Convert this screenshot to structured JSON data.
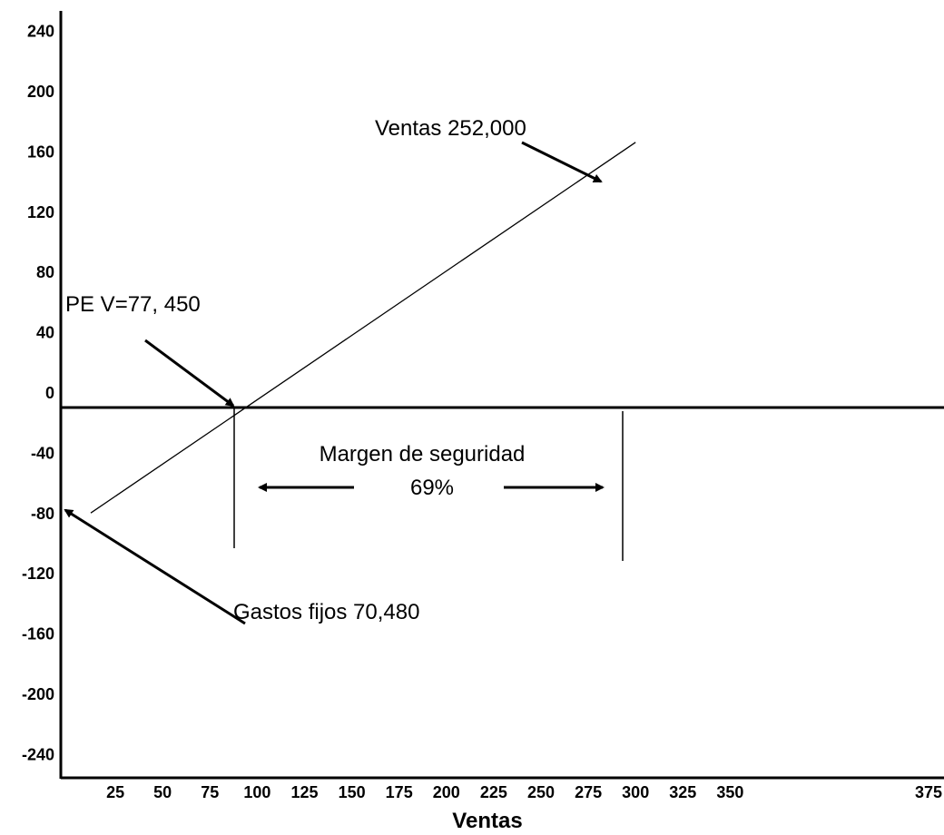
{
  "chart_data": {
    "type": "line",
    "title": "",
    "xlabel": "Ventas",
    "ylabel": "",
    "x_ticks": [
      "25",
      "50",
      "75",
      "100",
      "125",
      "150",
      "175",
      "200",
      "225",
      "250",
      "275",
      "300",
      "325",
      "350",
      "375"
    ],
    "y_ticks": [
      "240",
      "200",
      "160",
      "120",
      "80",
      "40",
      "0",
      "-40",
      "-80",
      "-120",
      "-160",
      "-200",
      "-240"
    ],
    "ylim": [
      -240,
      240
    ],
    "series": [
      {
        "x": [
          12,
          300
        ],
        "y": [
          -70,
          176
        ]
      }
    ],
    "annotations": {
      "sales": "Ventas 252,000",
      "breakeven": "PE V=77, 450",
      "margin_line1": "Margen de seguridad",
      "margin_line2": "69%",
      "fixed_costs": "Gastos fijos 70,480"
    },
    "grid": false,
    "legend": "none"
  }
}
